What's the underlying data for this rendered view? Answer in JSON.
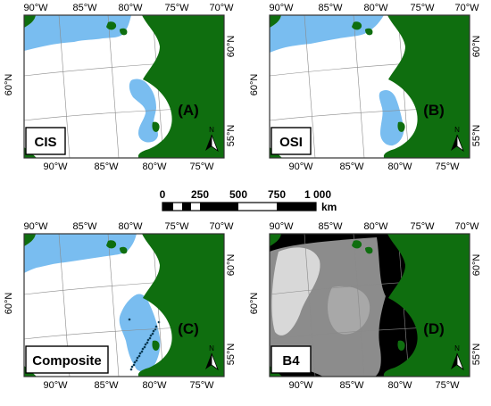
{
  "colors": {
    "land": "#0f6e0f",
    "ice": "#79bdf0",
    "water": "#ffffff",
    "b4_dark": "#000000",
    "frame": "#333333"
  },
  "axes": {
    "top_lon_labels": [
      "90°W",
      "85°W",
      "80°W",
      "75°W",
      "70°W"
    ],
    "bottom_lon_labels": [
      "90°W",
      "85°W",
      "80°W",
      "75°W"
    ],
    "left_lat_labels": [
      "60°N"
    ],
    "right_lat_labels": [
      "60°N",
      "55°N"
    ]
  },
  "panels": [
    {
      "id": "A",
      "letter": "(A)",
      "tag": "CIS",
      "type": "ice"
    },
    {
      "id": "B",
      "letter": "(B)",
      "tag": "OSI",
      "type": "ice"
    },
    {
      "id": "C",
      "letter": "(C)",
      "tag": "Composite",
      "type": "composite"
    },
    {
      "id": "D",
      "letter": "(D)",
      "tag": "B4",
      "type": "b4"
    }
  ],
  "scale_bar": {
    "labels": [
      "0",
      "250",
      "500",
      "750",
      "1 000"
    ],
    "unit": "km"
  },
  "north_arrow": {
    "label": "N"
  }
}
